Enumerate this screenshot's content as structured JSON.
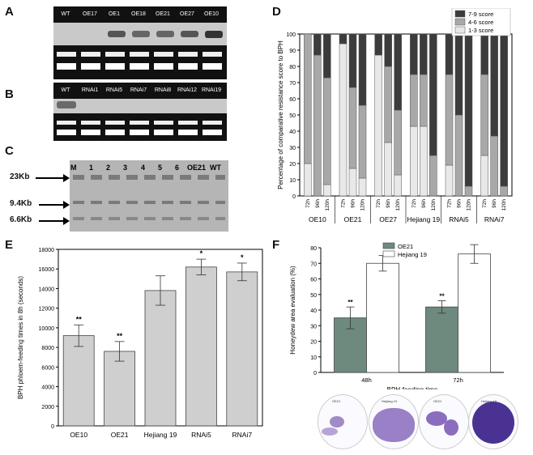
{
  "panels": {
    "A": "A",
    "B": "B",
    "C": "C",
    "D": "D",
    "E": "E",
    "F": "F"
  },
  "panelA": {
    "lanes": [
      "WT",
      "OE17",
      "OE1",
      "OE18",
      "OE21",
      "OE27",
      "OE10"
    ]
  },
  "panelB": {
    "lanes": [
      "WT",
      "RNAi1",
      "RNAi5",
      "RNAi7",
      "RNAi8",
      "RNAi12",
      "RNAi19"
    ]
  },
  "panelC": {
    "lanes": [
      "M",
      "1",
      "2",
      "3",
      "4",
      "5",
      "6",
      "OE21",
      "WT"
    ],
    "markers": [
      "23Kb",
      "9.4Kb",
      "6.6Kb"
    ]
  },
  "chart_data": [
    {
      "panel": "D",
      "type": "bar",
      "ylabel": "Percentage of comparative resistance score to BPH",
      "ylim": [
        0,
        100
      ],
      "yticks": [
        0,
        10,
        20,
        30,
        40,
        50,
        60,
        70,
        80,
        90,
        100
      ],
      "legend": [
        "7-9 score",
        "4-6 score",
        "1-3 score"
      ],
      "legend_position": "top-right",
      "groups": [
        "OE10",
        "OE21",
        "OE27",
        "Hejiang 19",
        "RNAi5",
        "RNAi7"
      ],
      "timepoints": [
        "72h",
        "96h",
        "120h"
      ],
      "colors": {
        "s1_3": "#e8e8e8",
        "s4_6": "#a8a8a8",
        "s7_9": "#3c3c3c"
      },
      "stacks": [
        {
          "group": "OE10",
          "values": [
            [
              20,
              80,
              0
            ],
            [
              0,
              87,
              13
            ],
            [
              7,
              66,
              27
            ]
          ]
        },
        {
          "group": "OE21",
          "values": [
            [
              94,
              0,
              6
            ],
            [
              17,
              50,
              33
            ],
            [
              11,
              45,
              44
            ]
          ]
        },
        {
          "group": "OE27",
          "values": [
            [
              87,
              0,
              13
            ],
            [
              33,
              47,
              20
            ],
            [
              13,
              40,
              47
            ]
          ]
        },
        {
          "group": "Hejiang 19",
          "values": [
            [
              43,
              32,
              25
            ],
            [
              43,
              32,
              25
            ],
            [
              0,
              25,
              75
            ]
          ]
        },
        {
          "group": "RNAi5",
          "values": [
            [
              19,
              56,
              25
            ],
            [
              0,
              50,
              50
            ],
            [
              0,
              6,
              94
            ]
          ]
        },
        {
          "group": "RNAi7",
          "values": [
            [
              25,
              50,
              25
            ],
            [
              0,
              37,
              63
            ],
            [
              0,
              6,
              94
            ]
          ]
        }
      ]
    },
    {
      "panel": "E",
      "type": "bar",
      "ylabel": "BPH phloem-feeding times in 8h (seconds)",
      "ylim": [
        0,
        18000
      ],
      "yticks": [
        0,
        2000,
        4000,
        6000,
        8000,
        10000,
        12000,
        14000,
        16000,
        18000
      ],
      "categories": [
        "OE10",
        "OE21",
        "Hejiang 19",
        "RNAi5",
        "RNAi7"
      ],
      "values": [
        9200,
        7600,
        13800,
        16200,
        15700
      ],
      "errors": [
        1100,
        1000,
        1500,
        800,
        900
      ],
      "significance": [
        "**",
        "**",
        "",
        "*",
        "*"
      ]
    },
    {
      "panel": "F",
      "type": "bar",
      "ylabel": "Honeydew area evaluation (%)",
      "xlabel": "BPH-feeding time",
      "ylim": [
        0,
        80
      ],
      "yticks": [
        0,
        10,
        20,
        30,
        40,
        50,
        60,
        70,
        80
      ],
      "categories": [
        "48h",
        "72h"
      ],
      "series": [
        {
          "name": "OE21",
          "values": [
            35,
            42
          ],
          "errors": [
            7,
            4
          ],
          "color": "#6e8a7e"
        },
        {
          "name": "Hejiang 19",
          "values": [
            70,
            76
          ],
          "errors": [
            5,
            6
          ],
          "color": "#ffffff"
        }
      ],
      "significance": [
        "**",
        "**"
      ],
      "legend_position": "top-center"
    }
  ],
  "plates": {
    "labels": [
      "OE21",
      "Hejiang 19",
      "OE21",
      "Hejiang 19"
    ]
  }
}
